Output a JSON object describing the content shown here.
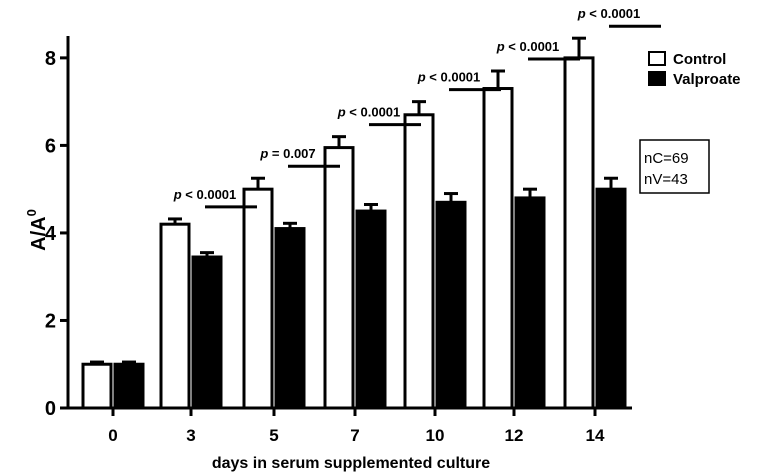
{
  "chart_data": {
    "type": "bar",
    "categories": [
      "0",
      "3",
      "5",
      "7",
      "10",
      "12",
      "14"
    ],
    "series": [
      {
        "name": "Control",
        "values": [
          1.0,
          4.2,
          5.0,
          5.95,
          6.7,
          7.3,
          8.0
        ],
        "errors": [
          0.05,
          0.12,
          0.25,
          0.25,
          0.3,
          0.4,
          0.45
        ],
        "color": "#ffffff"
      },
      {
        "name": "Valproate",
        "values": [
          1.0,
          3.45,
          4.1,
          4.5,
          4.7,
          4.8,
          5.0
        ],
        "errors": [
          0.05,
          0.1,
          0.12,
          0.15,
          0.2,
          0.2,
          0.25
        ],
        "color": "#000000"
      }
    ],
    "ylabel_main": "A/A",
    "ylabel_sup": "0",
    "xlabel": "days in serum supplemented culture",
    "ylim": [
      0,
      8.5
    ],
    "yticks": [
      "0",
      "2",
      "4",
      "6",
      "8"
    ],
    "annotations": [
      {
        "category": "3",
        "italic": "p",
        "rest": " < 0.0001"
      },
      {
        "category": "5",
        "italic": "p",
        "rest": " = 0.007"
      },
      {
        "category": "7",
        "italic": "p",
        "rest": " < 0.0001"
      },
      {
        "category": "10",
        "italic": "p",
        "rest": " < 0.0001"
      },
      {
        "category": "12",
        "italic": "p",
        "rest": " < 0.0001"
      },
      {
        "category": "14",
        "italic": "p",
        "rest": " < 0.0001"
      }
    ],
    "n_box": [
      "nC=69",
      "nV=43"
    ],
    "legend_position": "top-right",
    "grid": false
  }
}
